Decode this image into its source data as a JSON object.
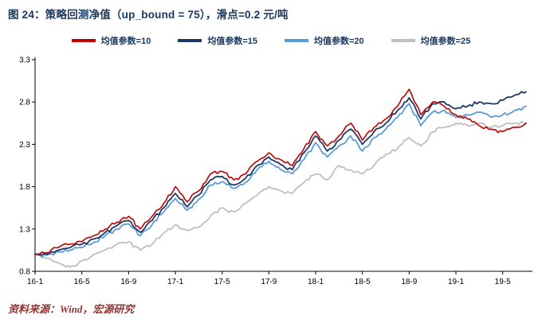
{
  "page": {
    "title": "图 24：策略回测净值（up_bound = 75），滑点=0.2 元/吨",
    "source": "资料来源：Wind，宏源研究"
  },
  "colors": {
    "title_text": "#17375E",
    "source_text": "#943634",
    "axis": "#000000"
  },
  "chart_data": {
    "type": "line",
    "title": "策略回测净值（up_bound = 75），滑点=0.2 元/吨",
    "xlabel": "",
    "ylabel": "",
    "grid": false,
    "legend_position": "top",
    "ylim": [
      0.8,
      3.3
    ],
    "y_ticks": [
      0.8,
      1.3,
      1.8,
      2.3,
      2.8,
      3.3
    ],
    "x": [
      "16-1",
      "16-2",
      "16-3",
      "16-4",
      "16-5",
      "16-6",
      "16-7",
      "16-8",
      "16-9",
      "16-10",
      "16-11",
      "16-12",
      "17-1",
      "17-2",
      "17-3",
      "17-4",
      "17-5",
      "17-6",
      "17-7",
      "17-8",
      "17-9",
      "17-10",
      "17-11",
      "17-12",
      "18-1",
      "18-2",
      "18-3",
      "18-4",
      "18-5",
      "18-6",
      "18-7",
      "18-8",
      "18-9",
      "18-10",
      "18-11",
      "18-12",
      "19-1",
      "19-2",
      "19-3",
      "19-4",
      "19-5",
      "19-6",
      "19-7"
    ],
    "x_tick_indices": [
      0,
      4,
      8,
      12,
      16,
      20,
      24,
      28,
      32,
      36,
      40
    ],
    "series": [
      {
        "name": "均值参数=10",
        "color": "#C00000",
        "values": [
          1.0,
          1.02,
          1.08,
          1.12,
          1.15,
          1.22,
          1.3,
          1.38,
          1.45,
          1.3,
          1.45,
          1.6,
          1.8,
          1.62,
          1.75,
          1.95,
          1.98,
          1.88,
          1.95,
          2.1,
          2.2,
          2.12,
          2.05,
          2.25,
          2.45,
          2.28,
          2.4,
          2.55,
          2.35,
          2.5,
          2.6,
          2.75,
          2.95,
          2.65,
          2.8,
          2.75,
          2.65,
          2.6,
          2.52,
          2.48,
          2.45,
          2.5,
          2.55
        ]
      },
      {
        "name": "均值参数=15",
        "color": "#1F3864",
        "values": [
          1.0,
          1.0,
          1.05,
          1.08,
          1.12,
          1.18,
          1.26,
          1.34,
          1.4,
          1.26,
          1.4,
          1.55,
          1.72,
          1.56,
          1.7,
          1.88,
          1.92,
          1.82,
          1.9,
          2.05,
          2.15,
          2.06,
          2.0,
          2.2,
          2.4,
          2.22,
          2.35,
          2.48,
          2.3,
          2.45,
          2.55,
          2.7,
          2.85,
          2.6,
          2.78,
          2.8,
          2.72,
          2.75,
          2.8,
          2.78,
          2.82,
          2.88,
          2.92
        ]
      },
      {
        "name": "均值参数=20",
        "color": "#5B9BD5",
        "values": [
          1.0,
          0.99,
          1.03,
          1.05,
          1.08,
          1.14,
          1.22,
          1.3,
          1.36,
          1.22,
          1.35,
          1.5,
          1.66,
          1.52,
          1.65,
          1.82,
          1.86,
          1.78,
          1.85,
          2.0,
          2.1,
          2.0,
          1.95,
          2.12,
          2.32,
          2.15,
          2.28,
          2.4,
          2.22,
          2.38,
          2.48,
          2.62,
          2.78,
          2.52,
          2.68,
          2.7,
          2.62,
          2.65,
          2.68,
          2.62,
          2.65,
          2.7,
          2.75
        ]
      },
      {
        "name": "均值参数=25",
        "color": "#BFBFBF",
        "values": [
          1.0,
          0.95,
          0.9,
          0.85,
          0.92,
          1.0,
          1.05,
          1.12,
          1.15,
          1.05,
          1.12,
          1.25,
          1.35,
          1.28,
          1.32,
          1.45,
          1.55,
          1.5,
          1.6,
          1.7,
          1.8,
          1.75,
          1.72,
          1.85,
          1.95,
          1.88,
          2.05,
          2.0,
          1.95,
          2.05,
          2.18,
          2.25,
          2.38,
          2.28,
          2.45,
          2.5,
          2.55,
          2.52,
          2.55,
          2.5,
          2.52,
          2.55,
          2.55
        ]
      }
    ]
  }
}
